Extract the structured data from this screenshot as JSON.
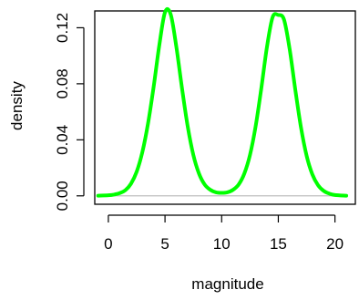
{
  "chart_data": {
    "type": "line",
    "title": "",
    "xlabel": "magnitude",
    "ylabel": "density",
    "xlim": [
      -1.2,
      21.8
    ],
    "ylim": [
      -0.006,
      0.132
    ],
    "x_ticks": [
      {
        "value": 0,
        "label": "0"
      },
      {
        "value": 5,
        "label": "5"
      },
      {
        "value": 10,
        "label": "10"
      },
      {
        "value": 15,
        "label": "15"
      },
      {
        "value": 20,
        "label": "20"
      }
    ],
    "y_ticks": [
      {
        "value": 0.0,
        "label": "0.00"
      },
      {
        "value": 0.04,
        "label": "0.04"
      },
      {
        "value": 0.08,
        "label": "0.08"
      },
      {
        "value": 0.12,
        "label": "0.12"
      }
    ],
    "baseline_y": 0,
    "line_color": "#00ff00",
    "baseline_color": "#bebebe",
    "grid": false,
    "series": [
      {
        "x": [
          -0.9,
          0,
          0.5,
          1,
          1.5,
          2,
          2.5,
          3,
          3.5,
          4,
          4.5,
          5,
          5.5,
          6,
          6.5,
          7,
          7.5,
          8,
          8.5,
          9,
          9.5,
          10,
          10.5,
          11,
          11.5,
          12,
          12.5,
          13,
          13.5,
          14,
          14.5,
          15,
          15.5,
          16,
          16.5,
          17,
          17.5,
          18,
          18.5,
          19,
          19.5,
          20,
          21
        ],
        "y": [
          0.0001,
          0.0004,
          0.0009,
          0.002,
          0.004,
          0.0087,
          0.0172,
          0.0312,
          0.0516,
          0.078,
          0.1077,
          0.1311,
          0.1296,
          0.1064,
          0.0768,
          0.0497,
          0.0292,
          0.0159,
          0.0081,
          0.0043,
          0.0025,
          0.0021,
          0.0025,
          0.0043,
          0.0081,
          0.0159,
          0.0292,
          0.0497,
          0.0768,
          0.1064,
          0.1276,
          0.1291,
          0.1259,
          0.1048,
          0.0757,
          0.0489,
          0.0286,
          0.0154,
          0.0077,
          0.0036,
          0.0016,
          0.0006,
          0.0001
        ]
      }
    ]
  }
}
